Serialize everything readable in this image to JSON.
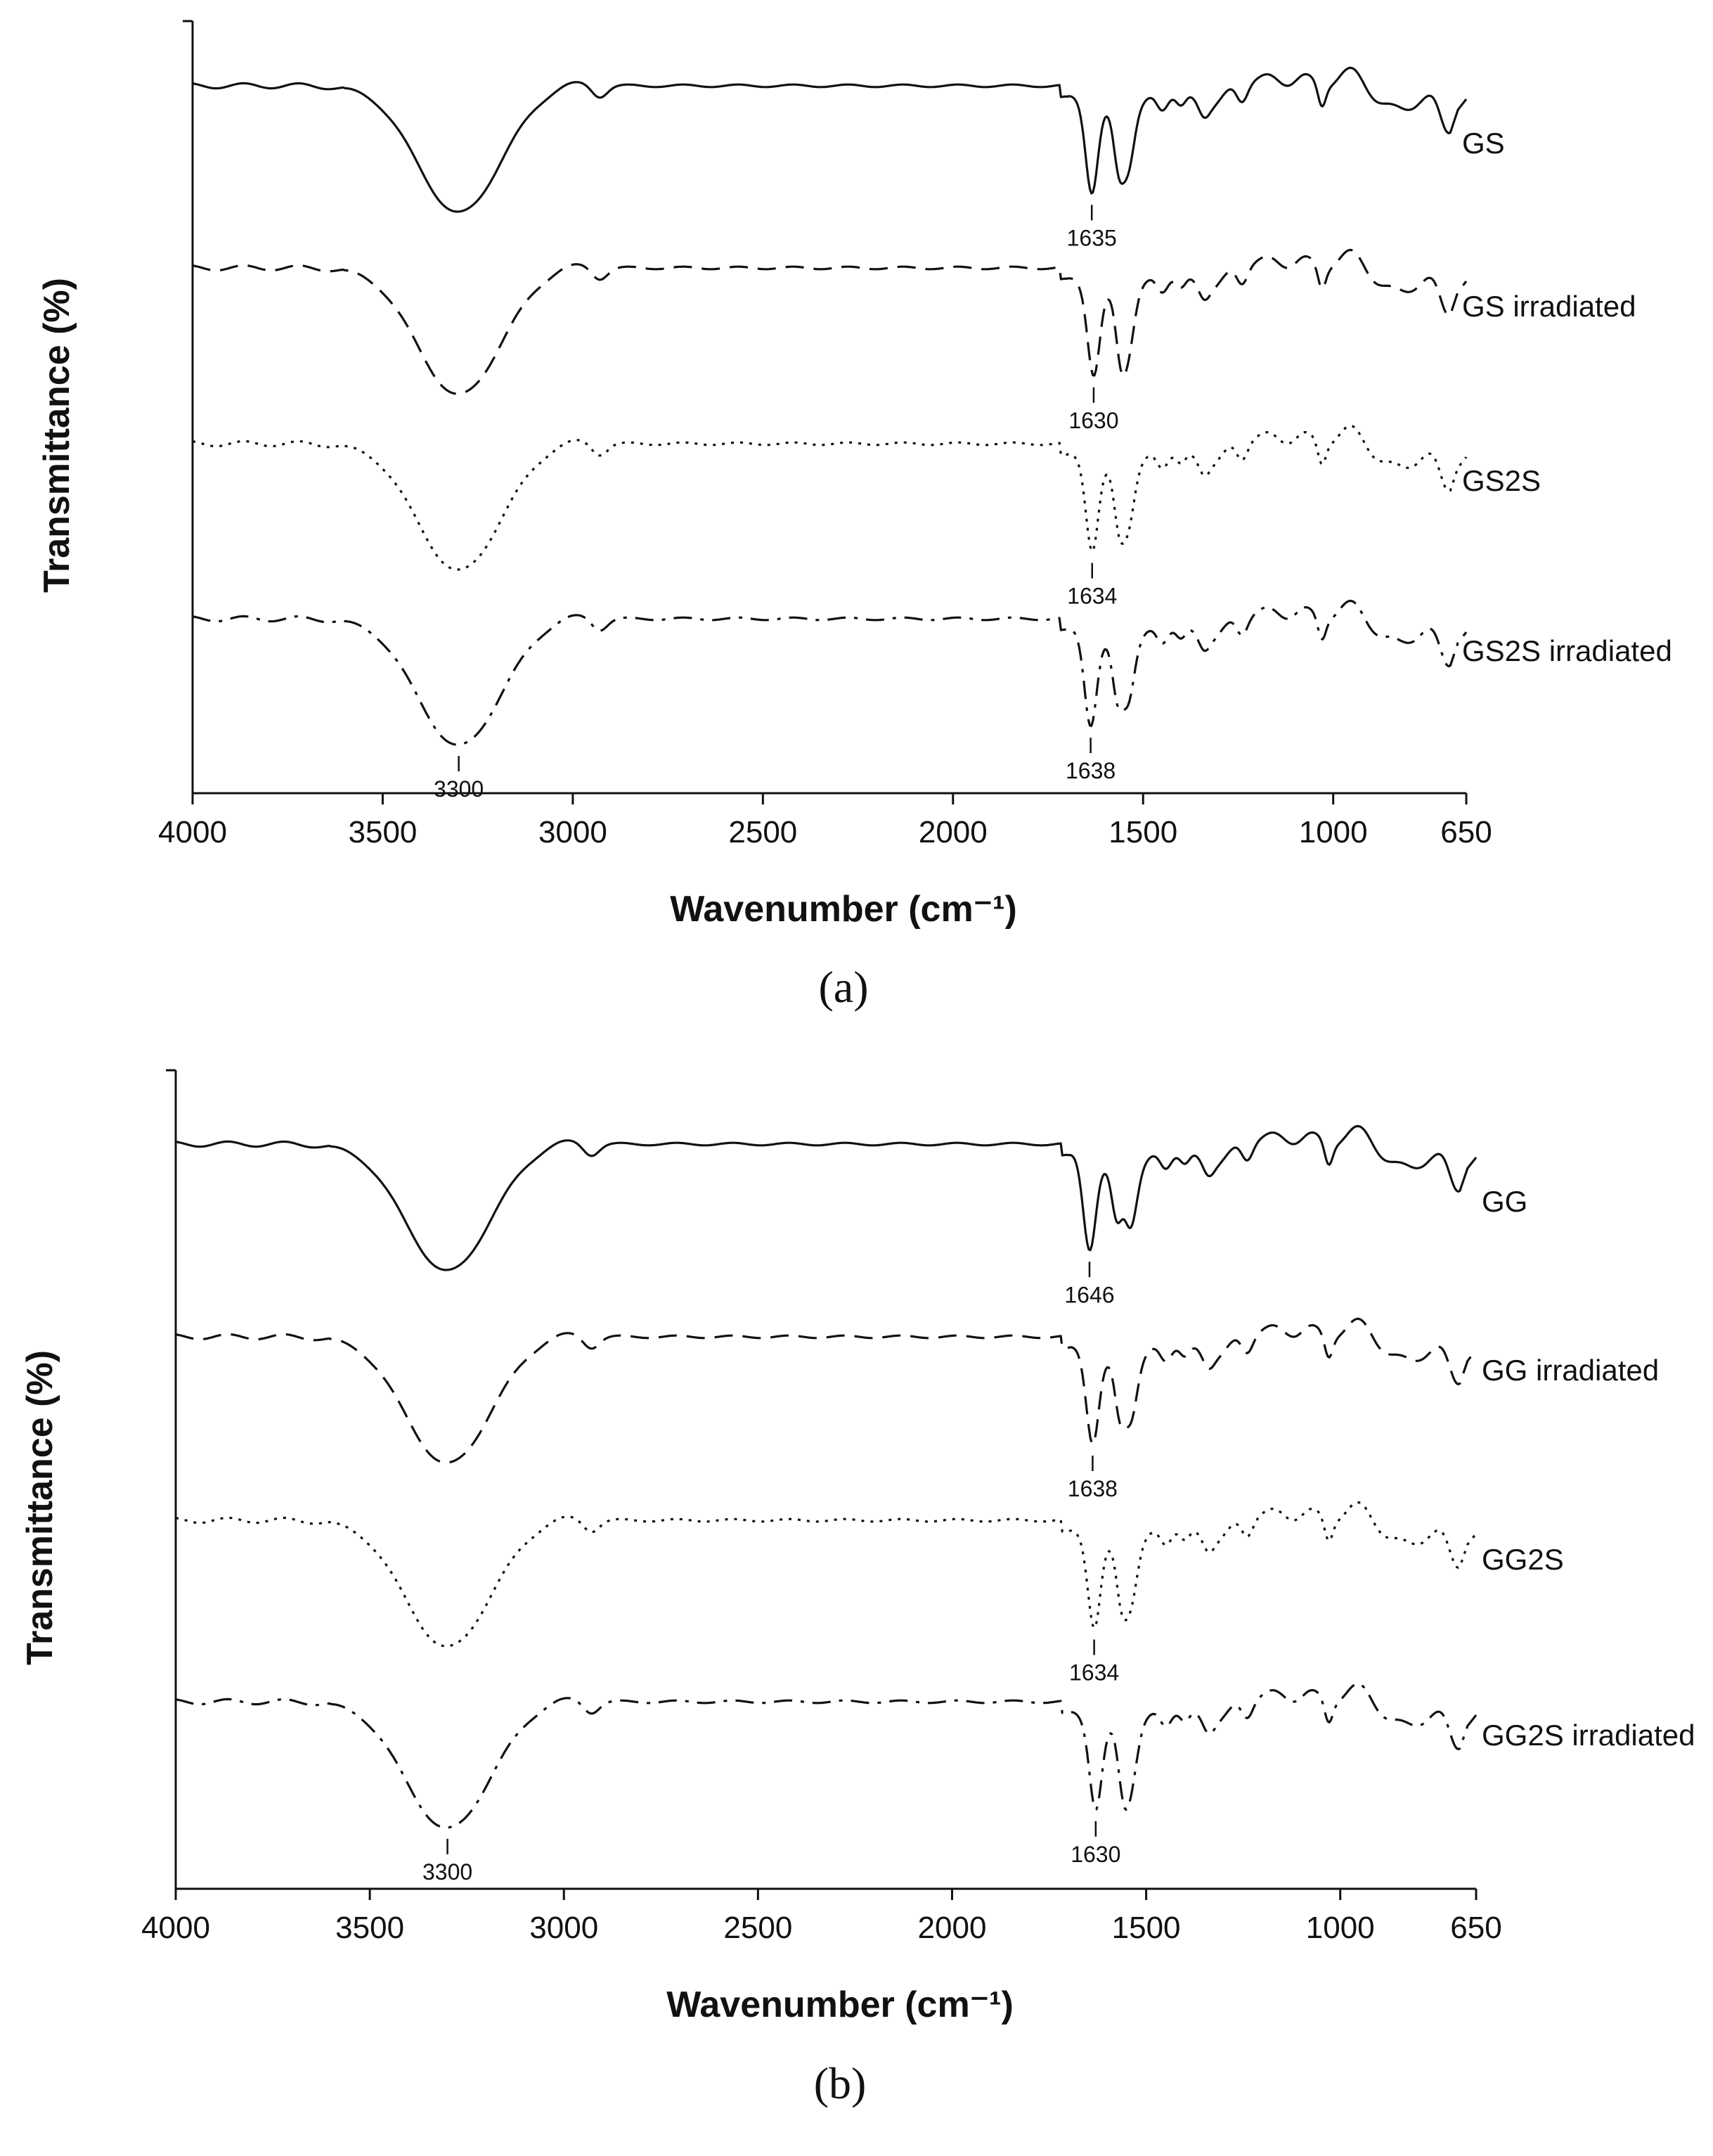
{
  "chart_data": [
    {
      "type": "line",
      "panel_label": "(a)",
      "xlabel": "Wavenumber (cm⁻¹)",
      "ylabel": "Transmittance (%)",
      "xlim": [
        4000,
        650
      ],
      "x_reversed": true,
      "x_ticks": [
        "4000",
        "3500",
        "3000",
        "2500",
        "2000",
        "1500",
        "1000",
        "650"
      ],
      "x_tick_values": [
        4000,
        3500,
        3000,
        2500,
        2000,
        1500,
        1000,
        650
      ],
      "legend": "inline-right",
      "grid": false,
      "series": [
        {
          "name": "GS",
          "line_style": "solid",
          "peaks": [
            {
              "x": 1635,
              "label": "1635"
            }
          ]
        },
        {
          "name": "GS irradiated",
          "line_style": "dashed",
          "peaks": [
            {
              "x": 1630,
              "label": "1630"
            }
          ]
        },
        {
          "name": "GS2S",
          "line_style": "dotted",
          "peaks": [
            {
              "x": 1634,
              "label": "1634"
            }
          ]
        },
        {
          "name": "GS2S irradiated",
          "line_style": "dashdot",
          "peaks": [
            {
              "x": 3300,
              "label": "3300"
            },
            {
              "x": 1638,
              "label": "1638"
            }
          ]
        }
      ]
    },
    {
      "type": "line",
      "panel_label": "(b)",
      "xlabel": "Wavenumber (cm⁻¹)",
      "ylabel": "Transmittance (%)",
      "xlim": [
        4000,
        650
      ],
      "x_reversed": true,
      "x_ticks": [
        "4000",
        "3500",
        "3000",
        "2500",
        "2000",
        "1500",
        "1000",
        "650"
      ],
      "x_tick_values": [
        4000,
        3500,
        3000,
        2500,
        2000,
        1500,
        1000,
        650
      ],
      "legend": "inline-right",
      "grid": false,
      "series": [
        {
          "name": "GG",
          "line_style": "solid",
          "peaks": [
            {
              "x": 1646,
              "label": "1646"
            }
          ]
        },
        {
          "name": "GG irradiated",
          "line_style": "dashed",
          "peaks": [
            {
              "x": 1638,
              "label": "1638"
            }
          ]
        },
        {
          "name": "GG2S",
          "line_style": "dotted",
          "peaks": [
            {
              "x": 1634,
              "label": "1634"
            }
          ]
        },
        {
          "name": "GG2S irradiated",
          "line_style": "dashdot",
          "peaks": [
            {
              "x": 3300,
              "label": "3300"
            },
            {
              "x": 1630,
              "label": "1630"
            }
          ]
        }
      ]
    }
  ]
}
